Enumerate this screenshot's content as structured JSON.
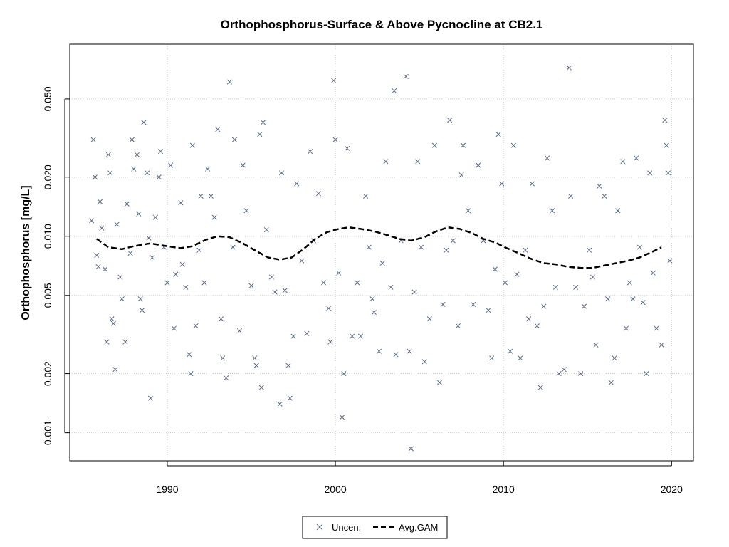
{
  "chart_data": {
    "type": "scatter",
    "title": "Orthophosphorus-Surface & Above Pycnocline at CB2.1",
    "xlabel": "",
    "ylabel": "Orthophosphorus [mg/L]",
    "x_scale": "linear",
    "y_scale": "log",
    "xlim": [
      1984.2,
      2021.3
    ],
    "ylim": [
      0.00072,
      0.095
    ],
    "x_ticks": [
      1990,
      2000,
      2010,
      2020
    ],
    "x_tick_labels": [
      "1990",
      "2000",
      "2010",
      "2020"
    ],
    "y_ticks": [
      0.001,
      0.002,
      0.005,
      0.01,
      0.02,
      0.05
    ],
    "y_tick_labels": [
      "0.001",
      "0.002",
      "0.005",
      "0.010",
      "0.020",
      "0.050"
    ],
    "grid": true,
    "legend_position": "bottom-center",
    "colors": {
      "points": "#5b6b8a",
      "gam": "#000000",
      "grid": "#c8c8c8"
    },
    "series": [
      {
        "name": "Uncen.",
        "kind": "scatter",
        "marker": "x",
        "points": [
          [
            1985.5,
            0.012
          ],
          [
            1985.6,
            0.031
          ],
          [
            1985.7,
            0.02
          ],
          [
            1985.8,
            0.008
          ],
          [
            1985.9,
            0.007
          ],
          [
            1986.0,
            0.015
          ],
          [
            1986.1,
            0.011
          ],
          [
            1986.3,
            0.0068
          ],
          [
            1986.4,
            0.0029
          ],
          [
            1986.5,
            0.026
          ],
          [
            1986.6,
            0.021
          ],
          [
            1986.7,
            0.0038
          ],
          [
            1986.8,
            0.0036
          ],
          [
            1986.9,
            0.0021
          ],
          [
            1987.0,
            0.0115
          ],
          [
            1987.2,
            0.0062
          ],
          [
            1987.3,
            0.0048
          ],
          [
            1987.5,
            0.0029
          ],
          [
            1987.6,
            0.0146
          ],
          [
            1987.8,
            0.0082
          ],
          [
            1987.9,
            0.031
          ],
          [
            1988.0,
            0.022
          ],
          [
            1988.2,
            0.026
          ],
          [
            1988.3,
            0.013
          ],
          [
            1988.4,
            0.0048
          ],
          [
            1988.5,
            0.0042
          ],
          [
            1988.6,
            0.038
          ],
          [
            1988.8,
            0.021
          ],
          [
            1988.9,
            0.0098
          ],
          [
            1989.0,
            0.0015
          ],
          [
            1989.1,
            0.0078
          ],
          [
            1989.3,
            0.0125
          ],
          [
            1989.5,
            0.02
          ],
          [
            1989.6,
            0.027
          ],
          [
            1989.8,
            0.0088
          ],
          [
            1990.0,
            0.0058
          ],
          [
            1990.2,
            0.023
          ],
          [
            1990.4,
            0.0034
          ],
          [
            1990.5,
            0.0064
          ],
          [
            1990.8,
            0.0148
          ],
          [
            1990.9,
            0.0072
          ],
          [
            1991.1,
            0.0055
          ],
          [
            1991.3,
            0.0025
          ],
          [
            1991.4,
            0.002
          ],
          [
            1991.5,
            0.029
          ],
          [
            1991.7,
            0.0035
          ],
          [
            1991.9,
            0.0085
          ],
          [
            1992.0,
            0.016
          ],
          [
            1992.2,
            0.0058
          ],
          [
            1992.4,
            0.022
          ],
          [
            1992.6,
            0.016
          ],
          [
            1992.8,
            0.0125
          ],
          [
            1993.0,
            0.035
          ],
          [
            1993.2,
            0.0038
          ],
          [
            1993.3,
            0.0024
          ],
          [
            1993.5,
            0.0019
          ],
          [
            1993.7,
            0.061
          ],
          [
            1993.9,
            0.0088
          ],
          [
            1994.0,
            0.031
          ],
          [
            1994.3,
            0.0033
          ],
          [
            1994.5,
            0.023
          ],
          [
            1994.7,
            0.0135
          ],
          [
            1995.0,
            0.0056
          ],
          [
            1995.2,
            0.0024
          ],
          [
            1995.3,
            0.0022
          ],
          [
            1995.5,
            0.033
          ],
          [
            1995.6,
            0.0017
          ],
          [
            1995.7,
            0.038
          ],
          [
            1995.9,
            0.0108
          ],
          [
            1996.2,
            0.0062
          ],
          [
            1996.4,
            0.0052
          ],
          [
            1996.7,
            0.0014
          ],
          [
            1996.8,
            0.021
          ],
          [
            1997.0,
            0.0053
          ],
          [
            1997.2,
            0.0022
          ],
          [
            1997.3,
            0.0015
          ],
          [
            1997.5,
            0.0031
          ],
          [
            1997.7,
            0.0185
          ],
          [
            1998.0,
            0.0075
          ],
          [
            1998.3,
            0.0032
          ],
          [
            1998.5,
            0.027
          ],
          [
            1998.7,
            0.0095
          ],
          [
            1999.0,
            0.0165
          ],
          [
            1999.3,
            0.0058
          ],
          [
            1999.6,
            0.0043
          ],
          [
            1999.7,
            0.0029
          ],
          [
            1999.9,
            0.062
          ],
          [
            2000.0,
            0.031
          ],
          [
            2000.2,
            0.0065
          ],
          [
            2000.4,
            0.0012
          ],
          [
            2000.5,
            0.002
          ],
          [
            2000.7,
            0.028
          ],
          [
            2001.0,
            0.0031
          ],
          [
            2001.3,
            0.0058
          ],
          [
            2001.5,
            0.0031
          ],
          [
            2001.8,
            0.016
          ],
          [
            2002.0,
            0.0088
          ],
          [
            2002.2,
            0.0048
          ],
          [
            2002.3,
            0.0041
          ],
          [
            2002.6,
            0.0026
          ],
          [
            2002.8,
            0.0073
          ],
          [
            2003.0,
            0.024
          ],
          [
            2003.3,
            0.0055
          ],
          [
            2003.5,
            0.055
          ],
          [
            2003.6,
            0.0025
          ],
          [
            2003.9,
            0.0095
          ],
          [
            2004.2,
            0.065
          ],
          [
            2004.4,
            0.0026
          ],
          [
            2004.5,
            0.00083
          ],
          [
            2004.7,
            0.0052
          ],
          [
            2004.9,
            0.024
          ],
          [
            2005.1,
            0.0088
          ],
          [
            2005.3,
            0.0023
          ],
          [
            2005.6,
            0.0038
          ],
          [
            2005.9,
            0.029
          ],
          [
            2006.2,
            0.0018
          ],
          [
            2006.4,
            0.0045
          ],
          [
            2006.6,
            0.0085
          ],
          [
            2006.8,
            0.039
          ],
          [
            2007.0,
            0.0095
          ],
          [
            2007.3,
            0.0035
          ],
          [
            2007.5,
            0.0205
          ],
          [
            2007.6,
            0.029
          ],
          [
            2007.9,
            0.0135
          ],
          [
            2008.2,
            0.0045
          ],
          [
            2008.5,
            0.023
          ],
          [
            2008.8,
            0.0095
          ],
          [
            2009.1,
            0.0042
          ],
          [
            2009.3,
            0.0024
          ],
          [
            2009.5,
            0.0068
          ],
          [
            2009.7,
            0.033
          ],
          [
            2009.9,
            0.0185
          ],
          [
            2010.1,
            0.0058
          ],
          [
            2010.4,
            0.0026
          ],
          [
            2010.6,
            0.029
          ],
          [
            2010.8,
            0.0064
          ],
          [
            2011.0,
            0.0024
          ],
          [
            2011.3,
            0.0085
          ],
          [
            2011.5,
            0.0038
          ],
          [
            2011.7,
            0.0185
          ],
          [
            2012.0,
            0.0035
          ],
          [
            2012.2,
            0.0017
          ],
          [
            2012.4,
            0.0044
          ],
          [
            2012.6,
            0.025
          ],
          [
            2012.9,
            0.0135
          ],
          [
            2013.1,
            0.0055
          ],
          [
            2013.3,
            0.002
          ],
          [
            2013.6,
            0.0021
          ],
          [
            2013.9,
            0.072
          ],
          [
            2014.0,
            0.016
          ],
          [
            2014.3,
            0.0055
          ],
          [
            2014.6,
            0.002
          ],
          [
            2014.8,
            0.0044
          ],
          [
            2015.1,
            0.0085
          ],
          [
            2015.3,
            0.0062
          ],
          [
            2015.5,
            0.0028
          ],
          [
            2015.7,
            0.018
          ],
          [
            2016.0,
            0.016
          ],
          [
            2016.2,
            0.0048
          ],
          [
            2016.4,
            0.0018
          ],
          [
            2016.6,
            0.0024
          ],
          [
            2016.8,
            0.0135
          ],
          [
            2017.1,
            0.024
          ],
          [
            2017.3,
            0.0034
          ],
          [
            2017.5,
            0.0058
          ],
          [
            2017.7,
            0.0048
          ],
          [
            2017.9,
            0.025
          ],
          [
            2018.1,
            0.0088
          ],
          [
            2018.3,
            0.0046
          ],
          [
            2018.5,
            0.002
          ],
          [
            2018.7,
            0.021
          ],
          [
            2018.9,
            0.0065
          ],
          [
            2019.1,
            0.0034
          ],
          [
            2019.4,
            0.0028
          ],
          [
            2019.6,
            0.039
          ],
          [
            2019.7,
            0.029
          ],
          [
            2019.8,
            0.021
          ],
          [
            2019.9,
            0.0075
          ]
        ]
      },
      {
        "name": "Avg.GAM",
        "kind": "line",
        "dash": "dashed",
        "points": [
          [
            1985.8,
            0.0097
          ],
          [
            1986.5,
            0.0088
          ],
          [
            1987.3,
            0.0086
          ],
          [
            1988.0,
            0.0089
          ],
          [
            1989.0,
            0.0092
          ],
          [
            1990.0,
            0.0089
          ],
          [
            1990.8,
            0.0087
          ],
          [
            1991.5,
            0.0089
          ],
          [
            1992.3,
            0.0096
          ],
          [
            1993.0,
            0.01
          ],
          [
            1993.7,
            0.0099
          ],
          [
            1994.5,
            0.0092
          ],
          [
            1995.3,
            0.0084
          ],
          [
            1996.0,
            0.0078
          ],
          [
            1996.7,
            0.0076
          ],
          [
            1997.4,
            0.0078
          ],
          [
            1998.1,
            0.0086
          ],
          [
            1998.8,
            0.0097
          ],
          [
            1999.5,
            0.0105
          ],
          [
            2000.2,
            0.0109
          ],
          [
            2000.8,
            0.0111
          ],
          [
            2001.5,
            0.0109
          ],
          [
            2002.3,
            0.0106
          ],
          [
            2003.0,
            0.0102
          ],
          [
            2003.8,
            0.0097
          ],
          [
            2004.5,
            0.0095
          ],
          [
            2005.3,
            0.0099
          ],
          [
            2006.0,
            0.0106
          ],
          [
            2006.7,
            0.0111
          ],
          [
            2007.4,
            0.0109
          ],
          [
            2008.1,
            0.0104
          ],
          [
            2008.8,
            0.0097
          ],
          [
            2009.5,
            0.0093
          ],
          [
            2010.2,
            0.0087
          ],
          [
            2010.9,
            0.0082
          ],
          [
            2011.6,
            0.0077
          ],
          [
            2012.4,
            0.0073
          ],
          [
            2013.1,
            0.0072
          ],
          [
            2013.8,
            0.007
          ],
          [
            2014.6,
            0.0069
          ],
          [
            2015.3,
            0.0069
          ],
          [
            2016.0,
            0.0071
          ],
          [
            2016.7,
            0.0073
          ],
          [
            2017.4,
            0.0075
          ],
          [
            2018.1,
            0.0078
          ],
          [
            2018.8,
            0.0083
          ],
          [
            2019.4,
            0.0088
          ]
        ]
      }
    ]
  }
}
